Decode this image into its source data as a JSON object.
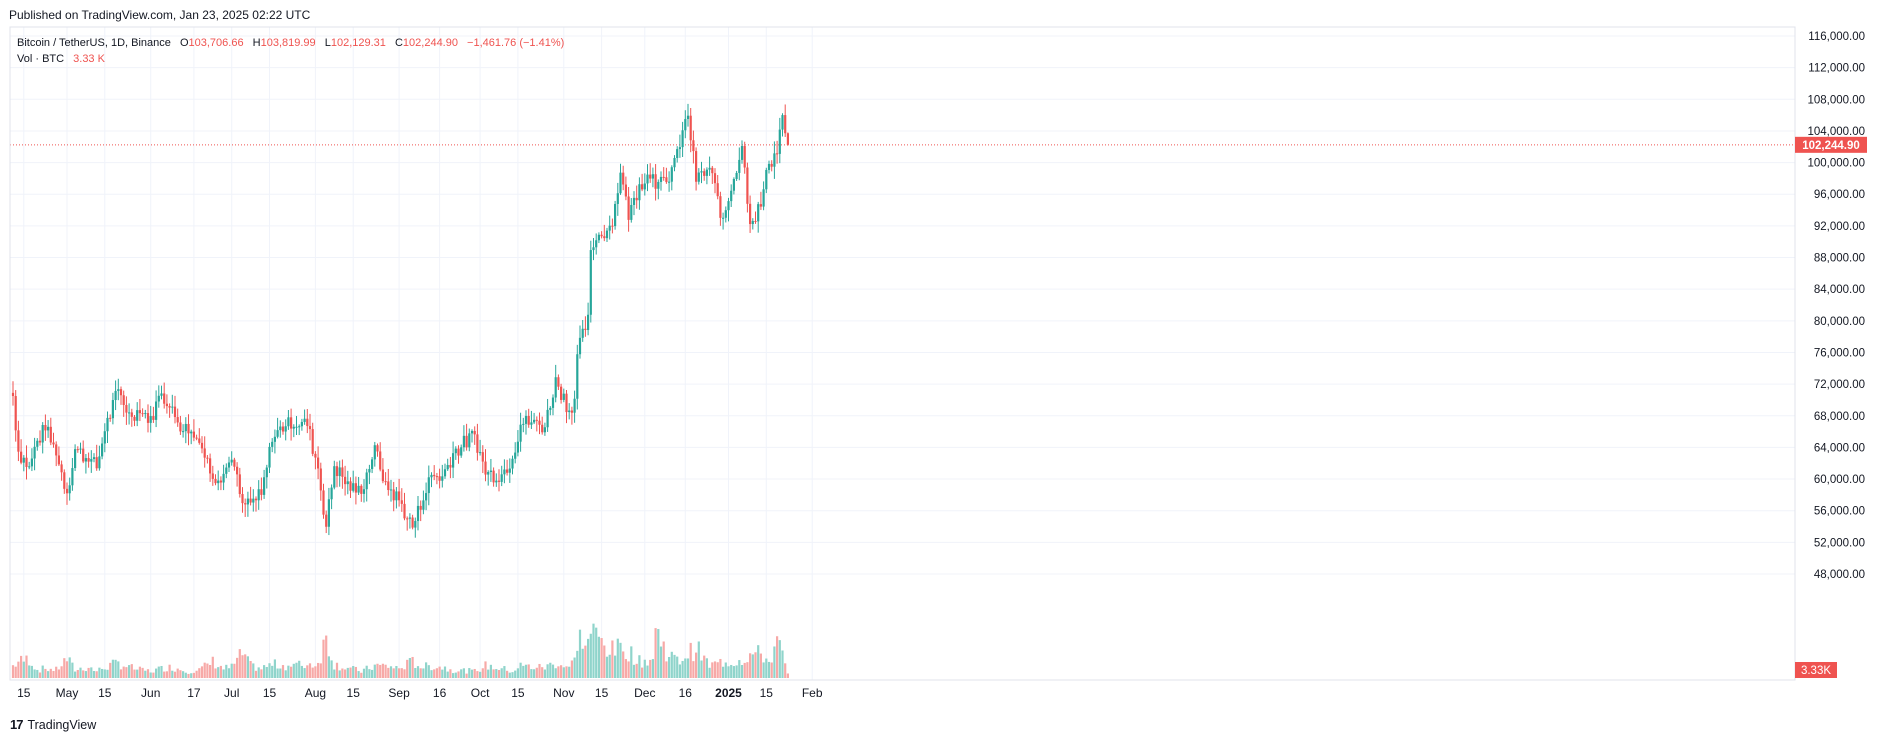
{
  "header": {
    "published": "Published on TradingView.com, Jan 23, 2025 02:22 UTC"
  },
  "legend": {
    "symbol": "Bitcoin / TetherUS, 1D, Binance",
    "o_label": "O",
    "o": "103,706.66",
    "h_label": "H",
    "h": "103,819.99",
    "l_label": "L",
    "l": "102,129.31",
    "c_label": "C",
    "c": "102,244.90",
    "change": "−1,461.76 (−1.41%)",
    "vol_label": "Vol · BTC",
    "vol": "3.33 K"
  },
  "branding": {
    "logo_mark": "17",
    "logo_text": "TradingView"
  },
  "colors": {
    "up": "#26a69a",
    "down": "#ef5350",
    "up_vol": "#8fd4cb",
    "down_vol": "#f7a9a7",
    "grid": "#f0f3fa",
    "text": "#131722"
  },
  "chart_data": {
    "type": "candlestick",
    "symbol": "Bitcoin / TetherUS",
    "interval": "1D",
    "exchange": "Binance",
    "x_range": [
      "2024-04-11",
      "2025-01-23"
    ],
    "ylim": [
      52000,
      117000
    ],
    "y_ticks": [
      116000,
      112000,
      108000,
      104000,
      100000,
      96000,
      92000,
      88000,
      84000,
      80000,
      76000,
      72000,
      68000,
      64000,
      60000,
      56000,
      52000,
      48000
    ],
    "y_tick_labels": [
      "116,000.00",
      "112,000.00",
      "108,000.00",
      "104,000.00",
      "100,000.00",
      "96,000.00",
      "92,000.00",
      "88,000.00",
      "84,000.00",
      "80,000.00",
      "76,000.00",
      "72,000.00",
      "68,000.00",
      "64,000.00",
      "60,000.00",
      "56,000.00",
      "52,000.00",
      "48,000.00"
    ],
    "x_ticks": [
      {
        "date": "2024-04-15",
        "label": "15"
      },
      {
        "date": "2024-05-01",
        "label": "May"
      },
      {
        "date": "2024-05-15",
        "label": "15"
      },
      {
        "date": "2024-06-01",
        "label": "Jun"
      },
      {
        "date": "2024-06-17",
        "label": "17"
      },
      {
        "date": "2024-07-01",
        "label": "Jul"
      },
      {
        "date": "2024-07-15",
        "label": "15"
      },
      {
        "date": "2024-08-01",
        "label": "Aug"
      },
      {
        "date": "2024-08-15",
        "label": "15"
      },
      {
        "date": "2024-09-01",
        "label": "Sep"
      },
      {
        "date": "2024-09-16",
        "label": "16"
      },
      {
        "date": "2024-10-01",
        "label": "Oct"
      },
      {
        "date": "2024-10-15",
        "label": "15"
      },
      {
        "date": "2024-11-01",
        "label": "Nov"
      },
      {
        "date": "2024-11-15",
        "label": "15"
      },
      {
        "date": "2024-12-01",
        "label": "Dec"
      },
      {
        "date": "2024-12-16",
        "label": "16"
      },
      {
        "date": "2025-01-01",
        "label": "2025"
      },
      {
        "date": "2025-01-15",
        "label": "15"
      },
      {
        "date": "2025-02-01",
        "label": "Feb"
      }
    ],
    "last_price": 102244.9,
    "last_price_label": "102,244.90",
    "last_volume_label": "3.33K",
    "volume_max": 70,
    "anchors": [
      [
        "2024-04-11",
        70500,
        9
      ],
      [
        "2024-04-13",
        63500,
        12
      ],
      [
        "2024-04-17",
        61500,
        14
      ],
      [
        "2024-04-20",
        64800,
        6
      ],
      [
        "2024-04-23",
        66400,
        7
      ],
      [
        "2024-04-27",
        63200,
        6
      ],
      [
        "2024-05-01",
        58300,
        14
      ],
      [
        "2024-05-04",
        63800,
        6
      ],
      [
        "2024-05-09",
        62500,
        8
      ],
      [
        "2024-05-12",
        61400,
        5
      ],
      [
        "2024-05-15",
        66200,
        8
      ],
      [
        "2024-05-20",
        71200,
        11
      ],
      [
        "2024-05-24",
        68300,
        8
      ],
      [
        "2024-05-28",
        68600,
        6
      ],
      [
        "2024-06-01",
        67700,
        5
      ],
      [
        "2024-06-05",
        71000,
        7
      ],
      [
        "2024-06-07",
        69500,
        8
      ],
      [
        "2024-06-11",
        67300,
        7
      ],
      [
        "2024-06-15",
        66000,
        5
      ],
      [
        "2024-06-19",
        64900,
        6
      ],
      [
        "2024-06-24",
        60300,
        12
      ],
      [
        "2024-06-28",
        60700,
        7
      ],
      [
        "2024-07-01",
        62700,
        8
      ],
      [
        "2024-07-05",
        56700,
        18
      ],
      [
        "2024-07-08",
        57000,
        9
      ],
      [
        "2024-07-12",
        57900,
        7
      ],
      [
        "2024-07-16",
        65000,
        10
      ],
      [
        "2024-07-22",
        67500,
        9
      ],
      [
        "2024-07-29",
        66800,
        10
      ],
      [
        "2024-08-02",
        61400,
        11
      ],
      [
        "2024-08-05",
        54000,
        30
      ],
      [
        "2024-08-08",
        61700,
        10
      ],
      [
        "2024-08-14",
        58700,
        7
      ],
      [
        "2024-08-18",
        58400,
        5
      ],
      [
        "2024-08-23",
        64000,
        9
      ],
      [
        "2024-08-27",
        59400,
        9
      ],
      [
        "2024-09-01",
        57300,
        7
      ],
      [
        "2024-09-06",
        53900,
        12
      ],
      [
        "2024-09-10",
        57600,
        8
      ],
      [
        "2024-09-13",
        60500,
        9
      ],
      [
        "2024-09-17",
        60300,
        8
      ],
      [
        "2024-09-21",
        63300,
        6
      ],
      [
        "2024-09-29",
        65600,
        5
      ],
      [
        "2024-10-03",
        60700,
        9
      ],
      [
        "2024-10-09",
        60600,
        7
      ],
      [
        "2024-10-13",
        62800,
        5
      ],
      [
        "2024-10-16",
        67000,
        9
      ],
      [
        "2024-10-21",
        67300,
        8
      ],
      [
        "2024-10-25",
        66600,
        8
      ],
      [
        "2024-10-29",
        72700,
        11
      ],
      [
        "2024-11-03",
        68700,
        8
      ],
      [
        "2024-11-05",
        70200,
        13
      ],
      [
        "2024-11-06",
        75600,
        30
      ],
      [
        "2024-11-10",
        80500,
        25
      ],
      [
        "2024-11-11",
        88700,
        35
      ],
      [
        "2024-11-13",
        90400,
        30
      ],
      [
        "2024-11-19",
        92300,
        20
      ],
      [
        "2024-11-22",
        98900,
        22
      ],
      [
        "2024-11-25",
        93000,
        20
      ],
      [
        "2024-11-29",
        97400,
        12
      ],
      [
        "2024-12-04",
        98800,
        14
      ],
      [
        "2024-12-05",
        97000,
        35
      ],
      [
        "2024-12-09",
        97400,
        20
      ],
      [
        "2024-12-13",
        101400,
        12
      ],
      [
        "2024-12-17",
        106000,
        18
      ],
      [
        "2024-12-20",
        97700,
        22
      ],
      [
        "2024-12-25",
        99300,
        9
      ],
      [
        "2024-12-30",
        92700,
        12
      ],
      [
        "2025-01-03",
        98100,
        12
      ],
      [
        "2025-01-06",
        102200,
        14
      ],
      [
        "2025-01-09",
        92500,
        17
      ],
      [
        "2025-01-13",
        94500,
        18
      ],
      [
        "2025-01-16",
        100000,
        12
      ],
      [
        "2025-01-19",
        101300,
        25
      ],
      [
        "2025-01-21",
        106100,
        18
      ],
      [
        "2025-01-22",
        103700,
        9
      ],
      [
        "2025-01-23",
        102244.9,
        3.33
      ]
    ]
  }
}
